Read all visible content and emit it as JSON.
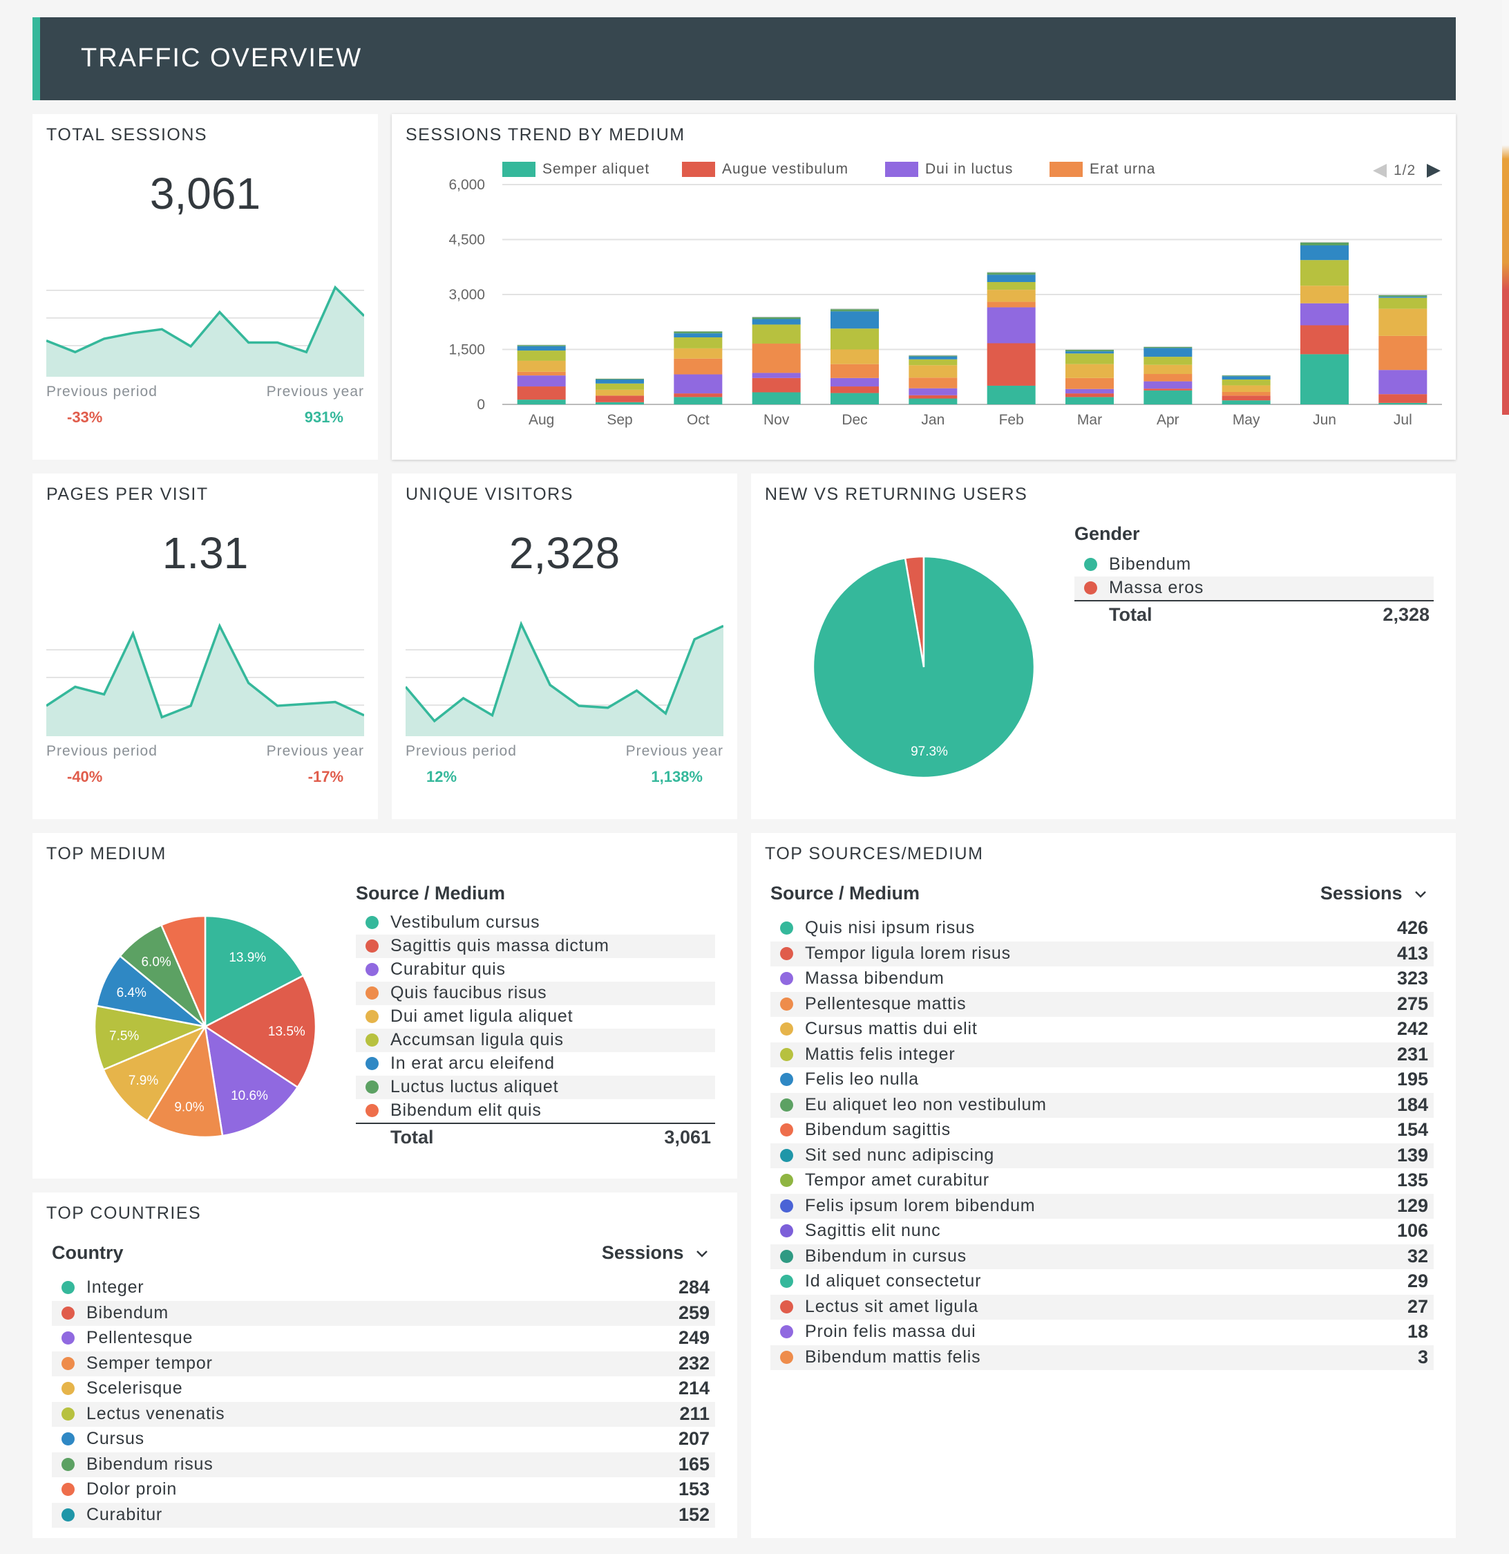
{
  "header": {
    "title": "TRAFFIC OVERVIEW"
  },
  "colors": {
    "teal": "#35b89b",
    "red": "#e05c4b",
    "purple": "#9069e0",
    "orange": "#ee8c4b",
    "gold": "#e6b44a",
    "olive": "#b7c13f",
    "blue": "#2f88c4",
    "green": "#5ca163",
    "accent": "#35b89b",
    "header_bg": "#37474f"
  },
  "total_sessions": {
    "title": "TOTAL SESSIONS",
    "value": "3,061",
    "prev_period_label": "Previous period",
    "prev_period_value": "-33%",
    "prev_year_label": "Previous year",
    "prev_year_value": "931%",
    "trend": [
      1.9,
      1.3,
      2.0,
      2.3,
      2.5,
      1.6,
      3.4,
      1.8,
      1.8,
      1.3,
      4.7,
      3.2
    ]
  },
  "sessions_trend": {
    "title": "SESSIONS TREND BY MEDIUM",
    "legend": [
      "Semper aliquet",
      "Augue vestibulum",
      "Dui in luctus",
      "Erat urna"
    ],
    "pager": "1/2"
  },
  "chart_data": {
    "type": "bar",
    "stacked": true,
    "categories": [
      "Aug",
      "Sep",
      "Oct",
      "Nov",
      "Dec",
      "Jan",
      "Feb",
      "Mar",
      "Apr",
      "May",
      "Jun",
      "Jul"
    ],
    "y_ticks": [
      "6,000",
      "4,500",
      "3,000",
      "1,500",
      "0"
    ],
    "ylim": [
      0,
      6000
    ],
    "series": [
      {
        "name": "Semper aliquet",
        "color": "#35b89b",
        "values": [
          130,
          60,
          200,
          330,
          310,
          160,
          510,
          200,
          380,
          110,
          1370,
          40
        ]
      },
      {
        "name": "Augue vestibulum",
        "color": "#e05c4b",
        "values": [
          360,
          180,
          100,
          390,
          180,
          90,
          1160,
          100,
          50,
          130,
          790,
          240
        ]
      },
      {
        "name": "Dui in luctus",
        "color": "#9069e0",
        "values": [
          300,
          0,
          520,
          140,
          230,
          190,
          980,
          120,
          200,
          0,
          600,
          660
        ]
      },
      {
        "name": "Erat urna",
        "color": "#ee8c4b",
        "values": [
          100,
          0,
          430,
          800,
          380,
          290,
          150,
          300,
          200,
          100,
          0,
          930
        ]
      },
      {
        "name": "",
        "color": "#e6b44a",
        "values": [
          300,
          160,
          280,
          0,
          400,
          340,
          330,
          380,
          250,
          180,
          480,
          740
        ]
      },
      {
        "name": "",
        "color": "#b7c13f",
        "values": [
          280,
          170,
          300,
          520,
          570,
          160,
          210,
          290,
          220,
          160,
          700,
          300
        ]
      },
      {
        "name": "",
        "color": "#2f88c4",
        "values": [
          120,
          110,
          110,
          150,
          470,
          80,
          200,
          60,
          240,
          90,
          400,
          30
        ]
      },
      {
        "name": "",
        "color": "#5ca163",
        "values": [
          30,
          20,
          50,
          50,
          60,
          20,
          60,
          40,
          30,
          20,
          80,
          40
        ]
      },
      {
        "name": "",
        "color": "#d6d6d6",
        "values": [
          10,
          10,
          10,
          20,
          20,
          20,
          20,
          10,
          10,
          10,
          20,
          10
        ]
      }
    ]
  },
  "pages_per_visit": {
    "title": "PAGES PER VISIT",
    "value": "1.31",
    "prev_period_label": "Previous period",
    "prev_period_value": "-40%",
    "prev_year_label": "Previous year",
    "prev_year_value": "-17%",
    "trend": [
      1.6,
      2.6,
      2.2,
      5.4,
      1.0,
      1.6,
      5.8,
      2.8,
      1.6,
      1.7,
      1.8,
      1.1
    ]
  },
  "unique_visitors": {
    "title": "UNIQUE VISITORS",
    "value": "2,328",
    "prev_period_label": "Previous period",
    "prev_period_value": "12%",
    "prev_year_label": "Previous year",
    "prev_year_value": "1,138%",
    "trend": [
      2.6,
      0.8,
      2.0,
      1.1,
      5.9,
      2.7,
      1.6,
      1.5,
      2.4,
      1.2,
      5.1,
      5.8
    ]
  },
  "new_vs_returning": {
    "title": "NEW VS RETURNING USERS",
    "legend_title": "Gender",
    "items": [
      {
        "label": "Bibendum",
        "color": "#35b89b",
        "share": 97.3
      },
      {
        "label": "Massa eros",
        "color": "#e05c4b",
        "share": 2.7
      }
    ],
    "slice_label": "97.3%",
    "total_label": "Total",
    "total_value": "2,328"
  },
  "top_medium": {
    "title": "TOP MEDIUM",
    "table_header": "Source / Medium",
    "slices": [
      {
        "label": "Vestibulum cursus",
        "color": "#35b89b",
        "share": 13.9,
        "text": "13.9%"
      },
      {
        "label": "Sagittis quis massa dictum",
        "color": "#e05c4b",
        "share": 13.5,
        "text": "13.5%"
      },
      {
        "label": "Curabitur quis",
        "color": "#9069e0",
        "share": 10.6,
        "text": "10.6%"
      },
      {
        "label": "Quis faucibus risus",
        "color": "#ee8c4b",
        "share": 9.0,
        "text": "9.0%"
      },
      {
        "label": "Dui amet ligula aliquet",
        "color": "#e6b44a",
        "share": 7.9,
        "text": "7.9%"
      },
      {
        "label": "Accumsan ligula quis",
        "color": "#b7c13f",
        "share": 7.5,
        "text": "7.5%"
      },
      {
        "label": "In erat arcu eleifend",
        "color": "#2f88c4",
        "share": 6.4,
        "text": "6.4%"
      },
      {
        "label": "Luctus luctus aliquet",
        "color": "#5ca163",
        "share": 6.0,
        "text": "6.0%"
      },
      {
        "label": "Bibendum elit quis",
        "color": "#ee6e4b",
        "share": 5.2,
        "text": ""
      }
    ],
    "total_label": "Total",
    "total_value": "3,061"
  },
  "top_sources": {
    "title": "TOP SOURCES/MEDIUM",
    "col1": "Source / Medium",
    "col2": "Sessions",
    "rows": [
      {
        "label": "Quis nisi ipsum risus",
        "value": "426",
        "color": "#35b89b"
      },
      {
        "label": "Tempor ligula lorem risus",
        "value": "413",
        "color": "#e05c4b"
      },
      {
        "label": "Massa bibendum",
        "value": "323",
        "color": "#9069e0"
      },
      {
        "label": "Pellentesque mattis",
        "value": "275",
        "color": "#ee8c4b"
      },
      {
        "label": "Cursus mattis dui elit",
        "value": "242",
        "color": "#e6b44a"
      },
      {
        "label": "Mattis felis integer",
        "value": "231",
        "color": "#b7c13f"
      },
      {
        "label": "Felis leo nulla",
        "value": "195",
        "color": "#2f88c4"
      },
      {
        "label": "Eu aliquet leo non vestibulum",
        "value": "184",
        "color": "#5ca163"
      },
      {
        "label": "Bibendum sagittis",
        "value": "154",
        "color": "#ee6e4b"
      },
      {
        "label": "Sit sed nunc adipiscing",
        "value": "139",
        "color": "#1f96a8"
      },
      {
        "label": "Tempor amet curabitur",
        "value": "135",
        "color": "#8fb542"
      },
      {
        "label": "Felis ipsum lorem bibendum",
        "value": "129",
        "color": "#4a63d6"
      },
      {
        "label": "Sagittis elit nunc",
        "value": "106",
        "color": "#7c5fd9"
      },
      {
        "label": "Bibendum in cursus",
        "value": "32",
        "color": "#2f9a83"
      },
      {
        "label": "Id aliquet consectetur",
        "value": "29",
        "color": "#35b89b"
      },
      {
        "label": "Lectus sit amet ligula",
        "value": "27",
        "color": "#e05c4b"
      },
      {
        "label": "Proin felis massa dui",
        "value": "18",
        "color": "#9069e0"
      },
      {
        "label": "Bibendum mattis felis",
        "value": "3",
        "color": "#ee8c4b"
      }
    ]
  },
  "top_countries": {
    "title": "TOP COUNTRIES",
    "col1": "Country",
    "col2": "Sessions",
    "rows": [
      {
        "label": "Integer",
        "value": "284",
        "color": "#35b89b"
      },
      {
        "label": "Bibendum",
        "value": "259",
        "color": "#e05c4b"
      },
      {
        "label": "Pellentesque",
        "value": "249",
        "color": "#9069e0"
      },
      {
        "label": "Semper tempor",
        "value": "232",
        "color": "#ee8c4b"
      },
      {
        "label": "Scelerisque",
        "value": "214",
        "color": "#e6b44a"
      },
      {
        "label": "Lectus venenatis",
        "value": "211",
        "color": "#b7c13f"
      },
      {
        "label": "Cursus",
        "value": "207",
        "color": "#2f88c4"
      },
      {
        "label": "Bibendum risus",
        "value": "165",
        "color": "#5ca163"
      },
      {
        "label": "Dolor proin",
        "value": "153",
        "color": "#ee6e4b"
      },
      {
        "label": "Curabitur",
        "value": "152",
        "color": "#1f96a8"
      }
    ]
  }
}
